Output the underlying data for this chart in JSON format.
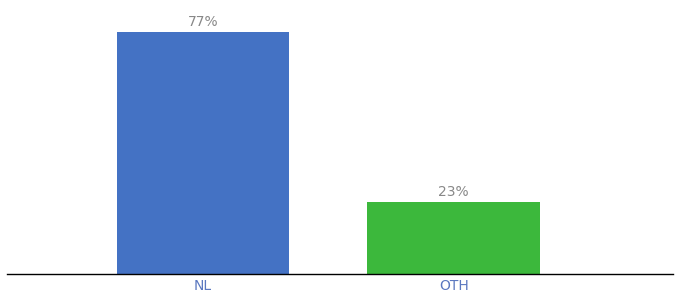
{
  "categories": [
    "NL",
    "OTH"
  ],
  "values": [
    77,
    23
  ],
  "bar_colors": [
    "#4472c4",
    "#3cb83c"
  ],
  "label_color": "#888888",
  "axis_label_color": "#5b78c0",
  "background_color": "#ffffff",
  "ylim": [
    0,
    85
  ],
  "bar_width": 0.22,
  "x_positions": [
    0.3,
    0.62
  ],
  "xlim": [
    0.05,
    0.9
  ],
  "label_fontsize": 10,
  "tick_fontsize": 10
}
